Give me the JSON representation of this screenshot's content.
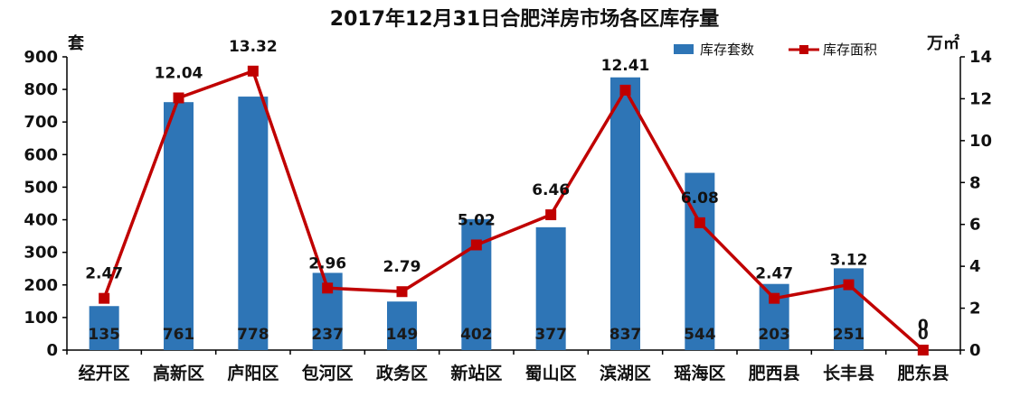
{
  "chart_data": {
    "type": "bar",
    "title": "2017年12月31日合肥洋房市场各区库存量",
    "categories": [
      "经开区",
      "高新区",
      "庐阳区",
      "包河区",
      "政务区",
      "新站区",
      "蜀山区",
      "滨湖区",
      "瑶海区",
      "肥西县",
      "长丰县",
      "肥东县"
    ],
    "ylabel_left": "套",
    "ylabel_right": "万㎡",
    "ylim": [
      0,
      900
    ],
    "ylim_right": [
      0,
      14
    ],
    "yticks_left": [
      "0",
      "100",
      "200",
      "300",
      "400",
      "500",
      "600",
      "700",
      "800",
      "900"
    ],
    "yticks_right": [
      "0",
      "2",
      "4",
      "6",
      "8",
      "10",
      "12",
      "14"
    ],
    "legend_position": "top-right",
    "grid": false,
    "series": [
      {
        "name": "库存套数",
        "type": "bar",
        "axis": "left",
        "color": "#2E75B6",
        "values": [
          135,
          761,
          778,
          237,
          149,
          402,
          377,
          837,
          544,
          203,
          251,
          0
        ],
        "labels": [
          "135",
          "761",
          "778",
          "237",
          "149",
          "402",
          "377",
          "837",
          "544",
          "203",
          "251",
          "0"
        ]
      },
      {
        "name": "库存面积",
        "type": "line",
        "axis": "right",
        "color": "#C00000",
        "values": [
          2.47,
          12.04,
          13.32,
          2.96,
          2.79,
          5.02,
          6.46,
          12.41,
          6.08,
          2.47,
          3.12,
          0
        ],
        "labels": [
          "2.47",
          "12.04",
          "13.32",
          "2.96",
          "2.79",
          "5.02",
          "6.46",
          "12.41",
          "6.08",
          "2.47",
          "3.12",
          "0"
        ]
      }
    ]
  }
}
